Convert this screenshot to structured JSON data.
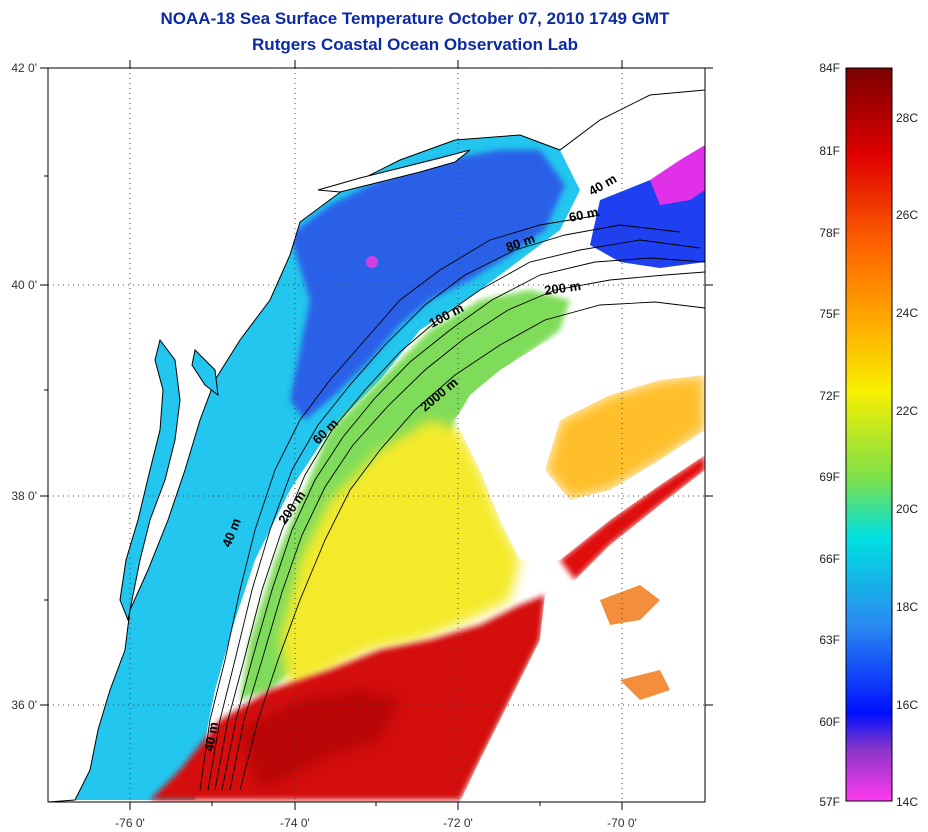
{
  "title": "NOAA-18 Sea Surface Temperature October 07, 2010 1749 GMT",
  "subtitle": "Rutgers Coastal Ocean Observation Lab",
  "map": {
    "lon_labels": [
      "-76 0'",
      "-74 0'",
      "-72 0'",
      "-70 0'"
    ],
    "lat_labels": [
      "42 0'",
      "40 0'",
      "38 0'",
      "36 0'"
    ],
    "grid": "dotted",
    "contour_labels": [
      "40 m",
      "60 m",
      "80 m",
      "100 m",
      "200 m",
      "200 m",
      "2000 m",
      "60 m",
      "40 m",
      "40 m"
    ]
  },
  "colorbar": {
    "f_labels": [
      "84F",
      "81F",
      "78F",
      "75F",
      "72F",
      "69F",
      "66F",
      "63F",
      "60F",
      "57F"
    ],
    "c_labels": [
      "28C",
      "26C",
      "24C",
      "22C",
      "20C",
      "18C",
      "16C",
      "14C"
    ],
    "colors": [
      "#8b0000",
      "#e00000",
      "#ff6a00",
      "#ffb300",
      "#f8f000",
      "#7ce04a",
      "#00e0e0",
      "#2a8af0",
      "#0010ff",
      "#8a35c8",
      "#ff3af0"
    ]
  }
}
